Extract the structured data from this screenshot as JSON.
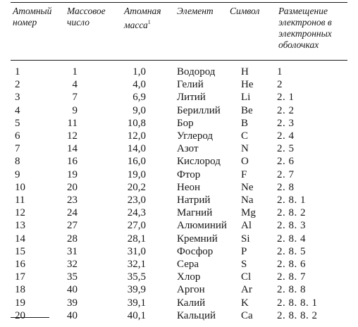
{
  "headers": {
    "atomic_number": "Атомный номер",
    "mass_number": "Массовое число",
    "atomic_mass": "Атомная масса",
    "atomic_mass_note": "1",
    "element": "Элемент",
    "symbol": "Символ",
    "electrons": "Размещение электронов в электронных оболочках"
  },
  "rows": [
    {
      "n": "1",
      "mass_number": "1",
      "atomic_mass": "1,0",
      "element": "Водород",
      "symbol": "H",
      "config": "1"
    },
    {
      "n": "2",
      "mass_number": "4",
      "atomic_mass": "4,0",
      "element": "Гелий",
      "symbol": "He",
      "config": "2"
    },
    {
      "n": "3",
      "mass_number": "7",
      "atomic_mass": "6,9",
      "element": "Литий",
      "symbol": "Li",
      "config": "2. 1"
    },
    {
      "n": "4",
      "mass_number": "9",
      "atomic_mass": "9,0",
      "element": "Бериллий",
      "symbol": "Be",
      "config": "2. 2"
    },
    {
      "n": "5",
      "mass_number": "11",
      "atomic_mass": "10,8",
      "element": "Бор",
      "symbol": "B",
      "config": "2. 3"
    },
    {
      "n": "6",
      "mass_number": "12",
      "atomic_mass": "12,0",
      "element": "Углерод",
      "symbol": "C",
      "config": "2. 4"
    },
    {
      "n": "7",
      "mass_number": "14",
      "atomic_mass": "14,0",
      "element": "Азот",
      "symbol": "N",
      "config": "2. 5"
    },
    {
      "n": "8",
      "mass_number": "16",
      "atomic_mass": "16,0",
      "element": "Кислород",
      "symbol": "O",
      "config": "2. 6"
    },
    {
      "n": "9",
      "mass_number": "19",
      "atomic_mass": "19,0",
      "element": "Фтор",
      "symbol": "F",
      "config": "2. 7"
    },
    {
      "n": "10",
      "mass_number": "20",
      "atomic_mass": "20,2",
      "element": "Неон",
      "symbol": "Ne",
      "config": "2. 8"
    },
    {
      "n": "11",
      "mass_number": "23",
      "atomic_mass": "23,0",
      "element": "Натрий",
      "symbol": "Na",
      "config": "2. 8. 1"
    },
    {
      "n": "12",
      "mass_number": "24",
      "atomic_mass": "24,3",
      "element": "Магний",
      "symbol": "Mg",
      "config": "2. 8. 2"
    },
    {
      "n": "13",
      "mass_number": "27",
      "atomic_mass": "27,0",
      "element": "Алюминий",
      "symbol": "Al",
      "config": "2. 8. 3"
    },
    {
      "n": "14",
      "mass_number": "28",
      "atomic_mass": "28,1",
      "element": "Кремний",
      "symbol": "Si",
      "config": "2. 8. 4"
    },
    {
      "n": "15",
      "mass_number": "31",
      "atomic_mass": "31,0",
      "element": "Фосфор",
      "symbol": "P",
      "config": "2. 8. 5"
    },
    {
      "n": "16",
      "mass_number": "32",
      "atomic_mass": "32,1",
      "element": "Сера",
      "symbol": "S",
      "config": "2. 8. 6"
    },
    {
      "n": "17",
      "mass_number": "35",
      "atomic_mass": "35,5",
      "element": "Хлор",
      "symbol": "Cl",
      "config": "2. 8. 7"
    },
    {
      "n": "18",
      "mass_number": "40",
      "atomic_mass": "39,9",
      "element": "Аргон",
      "symbol": "Ar",
      "config": "2. 8. 8"
    },
    {
      "n": "19",
      "mass_number": "39",
      "atomic_mass": "39,1",
      "element": "Калий",
      "symbol": "K",
      "config": "2. 8. 8. 1"
    },
    {
      "n": "20",
      "mass_number": "40",
      "atomic_mass": "40,1",
      "element": "Кальций",
      "symbol": "Ca",
      "config": "2. 8. 8. 2"
    }
  ]
}
